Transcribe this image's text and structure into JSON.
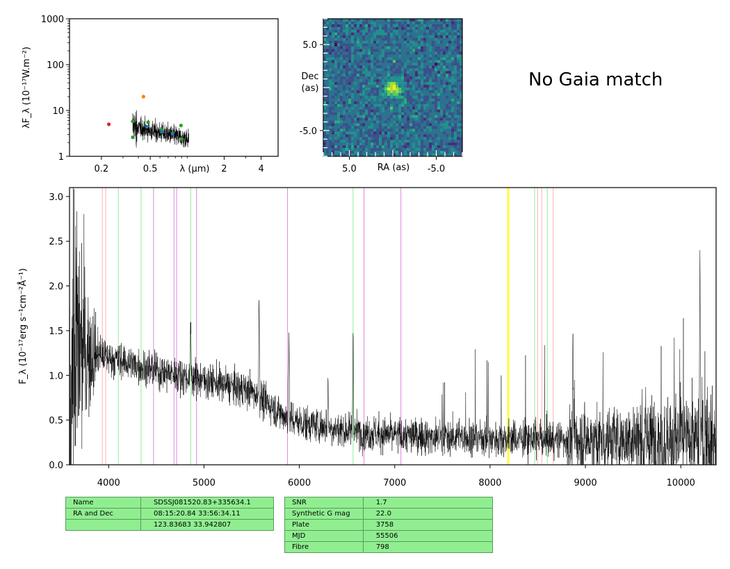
{
  "gaia_text": "No Gaia match",
  "colors": {
    "spectrum": "#000000",
    "balmer_lines": "#90ee90",
    "metal_lines": "#dd88dd",
    "other_lines": "#ffb0b0",
    "marker_line": "#ffff33"
  },
  "table_left": [
    [
      "Name",
      "SDSSJ081520.83+335634.1"
    ],
    [
      "RA and Dec",
      "08:15:20.84    33:56:34.11"
    ],
    [
      "",
      "123.83683    33.942807"
    ]
  ],
  "table_right": [
    [
      "SNR",
      "1.7"
    ],
    [
      "Synthetic G mag",
      "22.0"
    ],
    [
      "Plate",
      "3758"
    ],
    [
      "MJD",
      "55506"
    ],
    [
      "Fibre",
      "798"
    ]
  ],
  "chart_data": [
    {
      "type": "scatter",
      "title": "",
      "xlabel": "λ (μm)",
      "ylabel": "λF_λ (10⁻¹⁷W.m⁻²)",
      "xscale": "log",
      "yscale": "log",
      "xlim": [
        0.11,
        5.5
      ],
      "ylim": [
        1,
        1000
      ],
      "xticks": [
        0.2,
        0.5,
        2,
        4
      ],
      "xtick_labels": [
        "0.2",
        "0.5",
        "2",
        "4"
      ],
      "yticks": [
        1,
        10,
        100,
        1000
      ],
      "ytick_labels": [
        "1",
        "10",
        "100",
        "1000"
      ],
      "points": [
        {
          "x": 0.23,
          "y": 5.0,
          "color": "#d62728"
        },
        {
          "x": 0.44,
          "y": 20.0,
          "color": "#ff7f0e"
        },
        {
          "x": 0.36,
          "y": 5.8,
          "color": "#2ca02c"
        },
        {
          "x": 0.48,
          "y": 5.5,
          "color": "#2ca02c"
        },
        {
          "x": 0.62,
          "y": 3.8,
          "color": "#2ca02c"
        },
        {
          "x": 0.76,
          "y": 3.2,
          "color": "#2ca02c"
        },
        {
          "x": 0.89,
          "y": 4.7,
          "color": "#2ca02c"
        },
        {
          "x": 0.36,
          "y": 2.6,
          "color": "#2ca02c"
        },
        {
          "x": 0.9,
          "y": 2.4,
          "color": "#2ca02c"
        },
        {
          "x": 0.47,
          "y": 4.4,
          "color": "#1f77b4"
        },
        {
          "x": 0.62,
          "y": 3.4,
          "color": "#1f77b4"
        },
        {
          "x": 0.76,
          "y": 3.1,
          "color": "#1f77b4"
        }
      ],
      "spectrum_range": [
        0.36,
        1.03
      ]
    },
    {
      "type": "heatmap",
      "title": "",
      "xlabel": "RA (as)",
      "ylabel": "Dec\n(as)",
      "xlim": [
        8.0,
        -8.0
      ],
      "ylim": [
        -8.0,
        8.0
      ],
      "xticks": [
        5.0,
        -5.0
      ],
      "xtick_labels": [
        "5.0",
        "-5.0"
      ],
      "yticks": [
        5.0,
        -5.0
      ],
      "ytick_labels": [
        "5.0",
        "-5.0"
      ],
      "grid_size": 50,
      "source": {
        "x": 0.0,
        "y": 0.0
      }
    },
    {
      "type": "line",
      "title": "",
      "xlabel": "",
      "ylabel": "F_λ (10⁻¹⁷erg s⁻¹cm⁻²Å⁻¹)",
      "xlim": [
        3590,
        10370
      ],
      "ylim": [
        0.0,
        3.1
      ],
      "xticks": [
        4000,
        5000,
        6000,
        7000,
        8000,
        9000,
        10000
      ],
      "xtick_labels": [
        "4000",
        "5000",
        "6000",
        "7000",
        "8000",
        "9000",
        "10000"
      ],
      "yticks": [
        0.0,
        0.5,
        1.0,
        1.5,
        2.0,
        2.5,
        3.0
      ],
      "ytick_labels": [
        "0.0",
        "0.5",
        "1.0",
        "1.5",
        "2.0",
        "2.5",
        "3.0"
      ],
      "continuum": [
        [
          3600,
          1.35
        ],
        [
          4000,
          1.2
        ],
        [
          4500,
          1.05
        ],
        [
          5000,
          0.95
        ],
        [
          5500,
          0.82
        ],
        [
          5900,
          0.5
        ],
        [
          6500,
          0.38
        ],
        [
          7000,
          0.33
        ],
        [
          8000,
          0.3
        ],
        [
          9000,
          0.28
        ],
        [
          10370,
          0.28
        ]
      ],
      "emission_lines": [
        [
          4861,
          1.6
        ],
        [
          5577,
          1.85
        ],
        [
          5890,
          1.45
        ],
        [
          6300,
          0.95
        ],
        [
          6563,
          1.55
        ],
        [
          8870,
          1.2
        ],
        [
          10200,
          2.4
        ]
      ],
      "vertical_lines": {
        "balmer": [
          4102,
          4340,
          4861,
          6563,
          8467,
          8600
        ],
        "metal": [
          4471,
          4686,
          4713,
          4922,
          5876,
          6678,
          7065
        ],
        "other": [
          3934,
          3969,
          8498,
          8542,
          8662
        ],
        "marker": [
          8190
        ]
      }
    }
  ]
}
